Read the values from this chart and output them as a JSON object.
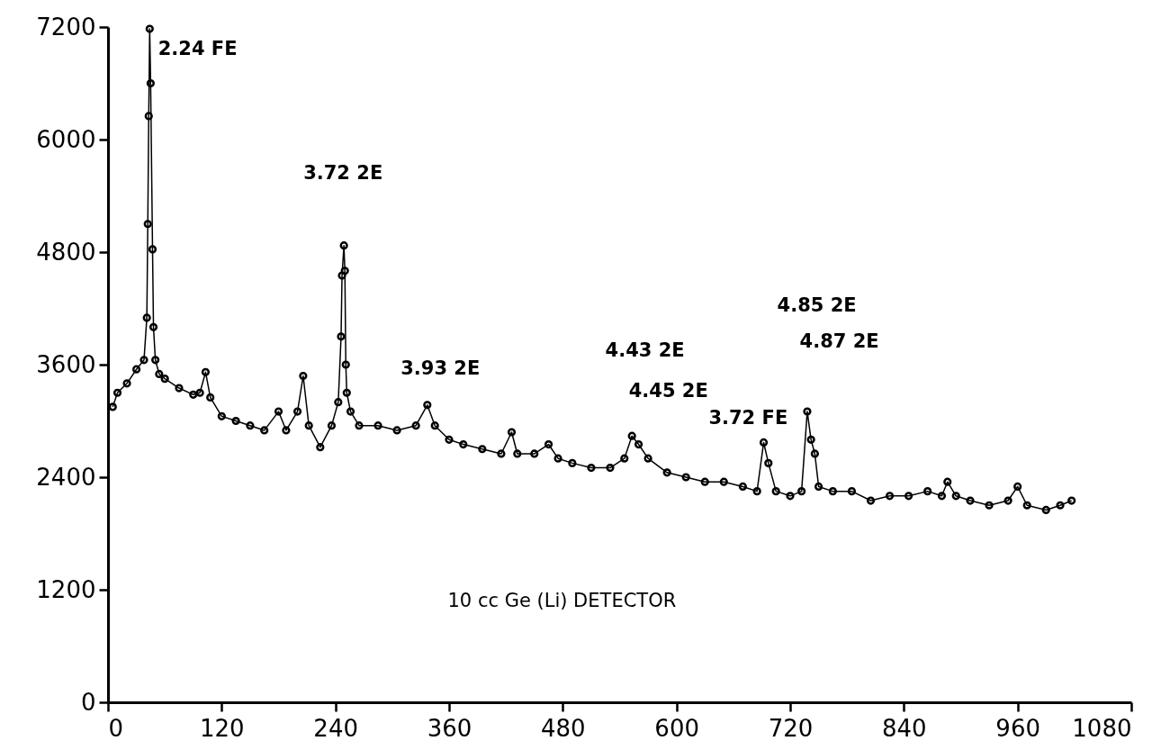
{
  "chart_data": {
    "type": "line",
    "x": [
      5,
      10,
      20,
      30,
      38,
      41,
      42,
      43,
      44,
      45,
      47,
      48,
      50,
      54,
      60,
      75,
      90,
      97,
      103,
      108,
      120,
      135,
      150,
      165,
      180,
      188,
      200,
      206,
      212,
      224,
      236,
      243,
      246,
      247,
      249,
      250,
      251,
      252,
      256,
      265,
      285,
      305,
      325,
      337,
      345,
      360,
      375,
      395,
      415,
      426,
      432,
      450,
      465,
      475,
      490,
      510,
      530,
      545,
      553,
      560,
      570,
      590,
      610,
      630,
      650,
      670,
      685,
      692,
      697,
      705,
      720,
      732,
      738,
      742,
      746,
      750,
      765,
      785,
      805,
      825,
      845,
      865,
      880,
      886,
      895,
      910,
      930,
      950,
      960,
      970,
      990,
      1005,
      1017
    ],
    "series": [
      {
        "color": "#000000",
        "values": [
          3150,
          3300,
          3400,
          3550,
          3650,
          4100,
          5100,
          6250,
          7180,
          6600,
          4830,
          4000,
          3650,
          3500,
          3450,
          3350,
          3280,
          3300,
          3520,
          3250,
          3050,
          3000,
          2950,
          2900,
          3100,
          2900,
          3100,
          3480,
          2950,
          2720,
          2950,
          3200,
          3900,
          4550,
          4870,
          4600,
          3600,
          3300,
          3100,
          2950,
          2950,
          2900,
          2950,
          3170,
          2950,
          2800,
          2750,
          2700,
          2650,
          2880,
          2650,
          2650,
          2750,
          2600,
          2550,
          2500,
          2500,
          2600,
          2840,
          2750,
          2600,
          2450,
          2400,
          2350,
          2350,
          2300,
          2250,
          2770,
          2550,
          2250,
          2200,
          2250,
          3100,
          2800,
          2650,
          2300,
          2250,
          2250,
          2150,
          2200,
          2200,
          2250,
          2200,
          2350,
          2200,
          2150,
          2100,
          2150,
          2300,
          2100,
          2050,
          2100,
          2150
        ]
      }
    ],
    "xlim": [
      0,
      1080
    ],
    "xticks": [
      0,
      120,
      240,
      360,
      480,
      600,
      720,
      840,
      960,
      1080
    ],
    "ylim": [
      0,
      7200
    ],
    "yticks": [
      0,
      1200,
      2400,
      3600,
      4800,
      6000,
      7200
    ],
    "marker": "circle",
    "annotations": [
      "2.24 FE",
      "3.72  2E",
      "3.93 2E",
      "4.43  2E",
      "4.45 2E",
      "3.72 FE",
      "4.85 2E",
      "4.87 2E",
      "10 cc  Ge (Li) DETECTOR"
    ]
  }
}
